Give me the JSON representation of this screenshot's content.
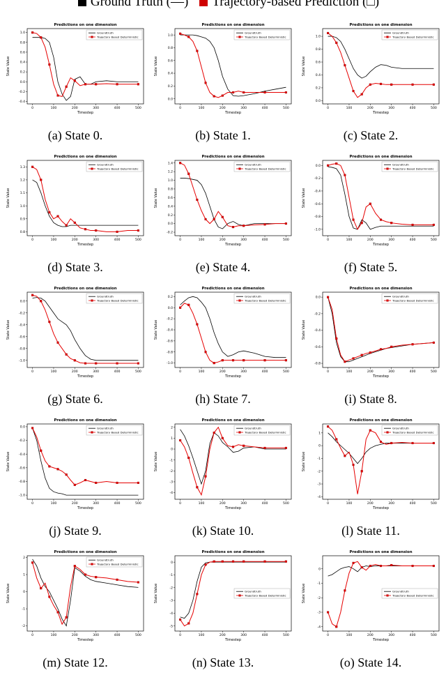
{
  "header": {
    "groundtruth_label": "Ground Truth (—)",
    "prediction_label": "Trajectory-based Prediction (□)",
    "groundtruth_color": "#000000",
    "prediction_color": "#cf0000"
  },
  "chart_common": {
    "type": "line",
    "title": "Predictions on one dimension",
    "xlabel": "Timestep",
    "ylabel": "State Value",
    "legend": [
      "Groundtruth",
      "Trajectory Based Deterministic"
    ],
    "colors": {
      "groundtruth": "#000000",
      "prediction": "#e60000"
    },
    "x": [
      0,
      20,
      40,
      60,
      80,
      100,
      120,
      140,
      160,
      180,
      200,
      225,
      250,
      275,
      300,
      350,
      400,
      450,
      500
    ],
    "xlim": [
      -25,
      525
    ],
    "xticks": [
      0,
      100,
      200,
      300,
      400,
      500
    ],
    "grid": false,
    "legend_position": "top-right"
  },
  "chart_data": [
    {
      "type": "line",
      "id": "state-0",
      "caption": "(a) State 0.",
      "ylim": [
        -0.45,
        1.08
      ],
      "yticks": [
        "-0.4",
        "-0.2",
        "0.0",
        "0.2",
        "0.4",
        "0.6",
        "0.8",
        "1.0"
      ],
      "series": {
        "groundtruth": [
          0.9,
          0.9,
          0.9,
          0.88,
          0.8,
          0.5,
          0.0,
          -0.25,
          -0.38,
          -0.3,
          0.05,
          0.1,
          -0.05,
          -0.05,
          0.0,
          0.02,
          0.0,
          0.0,
          0.0
        ],
        "prediction": [
          1.0,
          0.98,
          0.9,
          0.7,
          0.35,
          -0.05,
          -0.28,
          -0.3,
          -0.1,
          0.08,
          0.02,
          -0.08,
          -0.05,
          -0.05,
          -0.05,
          -0.04,
          -0.05,
          -0.05,
          -0.05
        ]
      }
    },
    {
      "type": "line",
      "id": "state-1",
      "caption": "(b) State 1.",
      "ylim": [
        -0.08,
        1.1
      ],
      "yticks": [
        "0.0",
        "0.2",
        "0.4",
        "0.6",
        "0.8",
        "1.0"
      ],
      "series": {
        "groundtruth": [
          1.0,
          1.0,
          1.0,
          1.0,
          0.99,
          0.97,
          0.95,
          0.9,
          0.8,
          0.6,
          0.35,
          0.15,
          0.05,
          0.04,
          0.05,
          0.08,
          0.12,
          0.15,
          0.18
        ],
        "prediction": [
          1.02,
          1.0,
          0.97,
          0.9,
          0.75,
          0.5,
          0.25,
          0.1,
          0.04,
          0.02,
          0.05,
          0.1,
          0.1,
          0.12,
          0.1,
          0.1,
          0.1,
          0.1,
          0.1
        ]
      }
    },
    {
      "type": "line",
      "id": "state-2",
      "caption": "(c) State 2.",
      "ylim": [
        -0.05,
        1.12
      ],
      "yticks": [
        "0.0",
        "0.2",
        "0.4",
        "0.6",
        "0.8",
        "1.0"
      ],
      "series": {
        "groundtruth": [
          1.0,
          1.0,
          0.98,
          0.92,
          0.8,
          0.65,
          0.5,
          0.4,
          0.35,
          0.38,
          0.45,
          0.52,
          0.56,
          0.55,
          0.52,
          0.5,
          0.5,
          0.5,
          0.5
        ],
        "prediction": [
          1.05,
          1.0,
          0.9,
          0.75,
          0.55,
          0.35,
          0.15,
          0.05,
          0.1,
          0.2,
          0.25,
          0.27,
          0.26,
          0.25,
          0.25,
          0.25,
          0.25,
          0.25,
          0.25
        ]
      }
    },
    {
      "type": "line",
      "id": "state-3",
      "caption": "(d) State 3.",
      "ylim": [
        0.77,
        1.35
      ],
      "yticks": [
        "0.8",
        "0.9",
        "1.0",
        "1.1",
        "1.2",
        "1.3"
      ],
      "series": {
        "groundtruth": [
          1.2,
          1.18,
          1.1,
          1.0,
          0.92,
          0.87,
          0.85,
          0.84,
          0.84,
          0.85,
          0.85,
          0.85,
          0.85,
          0.85,
          0.85,
          0.85,
          0.85,
          0.85,
          0.85
        ],
        "prediction": [
          1.3,
          1.28,
          1.2,
          1.05,
          0.95,
          0.9,
          0.92,
          0.88,
          0.85,
          0.9,
          0.87,
          0.83,
          0.82,
          0.81,
          0.81,
          0.8,
          0.8,
          0.81,
          0.81
        ]
      }
    },
    {
      "type": "line",
      "id": "state-4",
      "caption": "(e) State 4.",
      "ylim": [
        -0.28,
        1.46
      ],
      "yticks": [
        "-0.2",
        "0.0",
        "0.2",
        "0.4",
        "0.6",
        "0.8",
        "1.0",
        "1.2",
        "1.4"
      ],
      "series": {
        "groundtruth": [
          1.05,
          1.05,
          1.04,
          1.02,
          1.0,
          0.9,
          0.7,
          0.4,
          0.1,
          -0.08,
          -0.12,
          0.0,
          0.05,
          -0.02,
          -0.05,
          0.0,
          0.0,
          0.0,
          0.0
        ],
        "prediction": [
          1.4,
          1.35,
          1.15,
          0.85,
          0.55,
          0.3,
          0.1,
          0.0,
          0.1,
          0.28,
          0.15,
          -0.05,
          -0.08,
          -0.05,
          -0.05,
          -0.03,
          -0.02,
          0.0,
          0.0
        ]
      }
    },
    {
      "type": "line",
      "id": "state-5",
      "caption": "(f) State 5.",
      "ylim": [
        -1.1,
        0.08
      ],
      "yticks": [
        "-1.0",
        "-0.8",
        "-0.6",
        "-0.4",
        "-0.2",
        "0.0"
      ],
      "series": {
        "groundtruth": [
          -0.02,
          -0.03,
          -0.05,
          -0.15,
          -0.45,
          -0.8,
          -0.98,
          -1.0,
          -0.85,
          -0.9,
          -1.0,
          -0.97,
          -0.95,
          -0.95,
          -0.95,
          -0.95,
          -0.95,
          -0.95,
          -0.95
        ],
        "prediction": [
          0.0,
          0.02,
          0.03,
          0.0,
          -0.15,
          -0.5,
          -0.85,
          -1.0,
          -0.9,
          -0.65,
          -0.6,
          -0.75,
          -0.85,
          -0.88,
          -0.9,
          -0.92,
          -0.93,
          -0.93,
          -0.93
        ]
      }
    },
    {
      "type": "line",
      "id": "state-6",
      "caption": "(g) State 6.",
      "ylim": [
        -1.12,
        0.15
      ],
      "yticks": [
        "-1.0",
        "-0.8",
        "-0.6",
        "-0.4",
        "-0.2",
        "0.0"
      ],
      "series": {
        "groundtruth": [
          0.05,
          0.06,
          0.05,
          0.0,
          -0.1,
          -0.2,
          -0.3,
          -0.35,
          -0.4,
          -0.5,
          -0.65,
          -0.8,
          -0.92,
          -0.98,
          -1.0,
          -1.0,
          -1.0,
          -1.0,
          -1.0
        ],
        "prediction": [
          0.1,
          0.08,
          0.0,
          -0.15,
          -0.35,
          -0.55,
          -0.7,
          -0.8,
          -0.9,
          -0.97,
          -1.0,
          -1.04,
          -1.05,
          -1.05,
          -1.05,
          -1.05,
          -1.05,
          -1.05,
          -1.05
        ]
      }
    },
    {
      "type": "line",
      "id": "state-7",
      "caption": "(h) State 7.",
      "ylim": [
        -1.08,
        0.28
      ],
      "yticks": [
        "-1.0",
        "-0.8",
        "-0.6",
        "-0.4",
        "-0.2",
        "0.0",
        "0.2"
      ],
      "series": {
        "groundtruth": [
          0.05,
          0.12,
          0.18,
          0.2,
          0.18,
          0.1,
          0.0,
          -0.2,
          -0.45,
          -0.65,
          -0.8,
          -0.88,
          -0.85,
          -0.8,
          -0.78,
          -0.82,
          -0.88,
          -0.9,
          -0.9
        ],
        "prediction": [
          0.0,
          0.08,
          0.05,
          -0.1,
          -0.3,
          -0.55,
          -0.8,
          -0.95,
          -1.0,
          -0.98,
          -0.95,
          -0.95,
          -0.95,
          -0.95,
          -0.95,
          -0.95,
          -0.95,
          -0.95,
          -0.95
        ]
      }
    },
    {
      "type": "line",
      "id": "state-8",
      "caption": "(i) State 8.",
      "ylim": [
        -0.85,
        0.06
      ],
      "yticks": [
        "-0.8",
        "-0.6",
        "-0.4",
        "-0.2",
        "0.0"
      ],
      "series": {
        "groundtruth": [
          0.0,
          -0.2,
          -0.55,
          -0.72,
          -0.78,
          -0.78,
          -0.76,
          -0.74,
          -0.72,
          -0.7,
          -0.68,
          -0.66,
          -0.64,
          -0.62,
          -0.61,
          -0.59,
          -0.57,
          -0.56,
          -0.55
        ],
        "prediction": [
          0.0,
          -0.15,
          -0.5,
          -0.7,
          -0.78,
          -0.76,
          -0.74,
          -0.72,
          -0.7,
          -0.68,
          -0.67,
          -0.65,
          -0.63,
          -0.62,
          -0.6,
          -0.58,
          -0.57,
          -0.56,
          -0.55
        ]
      }
    },
    {
      "type": "line",
      "id": "state-9",
      "caption": "(j) State 9.",
      "ylim": [
        -1.06,
        0.04
      ],
      "yticks": [
        "-1.0",
        "-0.8",
        "-0.6",
        "-0.4",
        "-0.2",
        "0.0"
      ],
      "series": {
        "groundtruth": [
          -0.02,
          -0.2,
          -0.5,
          -0.75,
          -0.9,
          -0.95,
          -0.97,
          -0.98,
          -1.0,
          -1.0,
          -1.0,
          -1.0,
          -1.0,
          -1.0,
          -1.0,
          -1.0,
          -1.0,
          -1.0,
          -1.0
        ],
        "prediction": [
          -0.02,
          -0.15,
          -0.35,
          -0.5,
          -0.58,
          -0.6,
          -0.62,
          -0.65,
          -0.7,
          -0.78,
          -0.85,
          -0.82,
          -0.78,
          -0.8,
          -0.82,
          -0.8,
          -0.82,
          -0.82,
          -0.82
        ]
      }
    },
    {
      "type": "line",
      "id": "state-10",
      "caption": "(k) State 10.",
      "ylim": [
        -4.6,
        2.3
      ],
      "yticks": [
        "-4",
        "-3",
        "-2",
        "-1",
        "0",
        "1",
        "2"
      ],
      "series": {
        "groundtruth": [
          1.8,
          1.2,
          0.3,
          -0.8,
          -2.0,
          -3.2,
          -2.0,
          0.5,
          1.5,
          1.2,
          0.6,
          0.2,
          -0.3,
          -0.2,
          0.1,
          0.2,
          0.0,
          0.0,
          0.0
        ],
        "prediction": [
          0.8,
          0.2,
          -0.8,
          -2.2,
          -3.5,
          -4.2,
          -2.5,
          0.0,
          1.5,
          2.0,
          1.0,
          0.3,
          0.2,
          0.4,
          0.3,
          0.2,
          0.1,
          0.1,
          0.1
        ]
      }
    },
    {
      "type": "line",
      "id": "state-11",
      "caption": "(l) State 11.",
      "ylim": [
        -4.2,
        1.7
      ],
      "yticks": [
        "-4",
        "-3",
        "-2",
        "-1",
        "0",
        "1"
      ],
      "series": {
        "groundtruth": [
          1.0,
          0.7,
          0.3,
          0.0,
          -0.3,
          -0.6,
          -1.0,
          -1.4,
          -1.0,
          -0.5,
          -0.2,
          0.0,
          0.1,
          0.2,
          0.2,
          0.2,
          0.2,
          0.2,
          0.2
        ],
        "prediction": [
          1.5,
          1.2,
          0.5,
          -0.2,
          -0.8,
          -0.5,
          -1.5,
          -3.8,
          -2.0,
          0.5,
          1.2,
          1.0,
          0.3,
          0.1,
          0.2,
          0.25,
          0.2,
          0.2,
          0.2
        ]
      }
    },
    {
      "type": "line",
      "id": "state-12",
      "caption": "(m) State 12.",
      "ylim": [
        -2.3,
        2.1
      ],
      "yticks": [
        "-2",
        "-1",
        "0",
        "1",
        "2"
      ],
      "series": {
        "groundtruth": [
          1.9,
          1.5,
          0.8,
          0.3,
          0.0,
          -0.5,
          -1.0,
          -1.6,
          -2.0,
          -0.5,
          1.4,
          1.2,
          0.9,
          0.7,
          0.6,
          0.5,
          0.4,
          0.3,
          0.25
        ],
        "prediction": [
          1.7,
          0.8,
          0.2,
          0.5,
          -0.3,
          -0.8,
          -1.2,
          -1.9,
          -1.5,
          0.3,
          1.5,
          1.3,
          1.0,
          0.9,
          0.85,
          0.8,
          0.7,
          0.6,
          0.55
        ]
      }
    },
    {
      "type": "line",
      "id": "state-13",
      "caption": "(n) State 13.",
      "ylim": [
        -5.4,
        0.5
      ],
      "legend_pos": "mr",
      "yticks": [
        "-5",
        "-4",
        "-3",
        "-2",
        "-1",
        "0"
      ],
      "series": {
        "groundtruth": [
          -4.3,
          -4.4,
          -4.0,
          -3.0,
          -1.5,
          -0.4,
          -0.05,
          0.0,
          0.0,
          0.0,
          0.0,
          0.0,
          0.0,
          0.0,
          0.0,
          0.0,
          0.0,
          0.0,
          0.0
        ],
        "prediction": [
          -4.5,
          -5.0,
          -4.8,
          -4.0,
          -2.5,
          -1.0,
          -0.2,
          0.0,
          0.05,
          0.05,
          0.05,
          0.05,
          0.05,
          0.05,
          0.05,
          0.05,
          0.05,
          0.05,
          0.05
        ]
      }
    },
    {
      "type": "line",
      "id": "state-14",
      "caption": "(o) State 14.",
      "ylim": [
        -4.3,
        0.9
      ],
      "legend_pos": "mr",
      "yticks": [
        "-4",
        "-3",
        "-2",
        "-1",
        "0"
      ],
      "series": {
        "groundtruth": [
          -0.5,
          -0.4,
          -0.2,
          0.0,
          0.1,
          0.15,
          0.0,
          -0.2,
          0.1,
          0.2,
          0.15,
          0.2,
          0.2,
          0.2,
          0.2,
          0.2,
          0.2,
          0.2,
          0.2
        ],
        "prediction": [
          -3.0,
          -3.8,
          -4.0,
          -3.0,
          -1.5,
          -0.3,
          0.4,
          0.5,
          0.1,
          -0.1,
          0.2,
          0.3,
          0.2,
          0.2,
          0.25,
          0.2,
          0.2,
          0.2,
          0.2
        ]
      }
    }
  ]
}
